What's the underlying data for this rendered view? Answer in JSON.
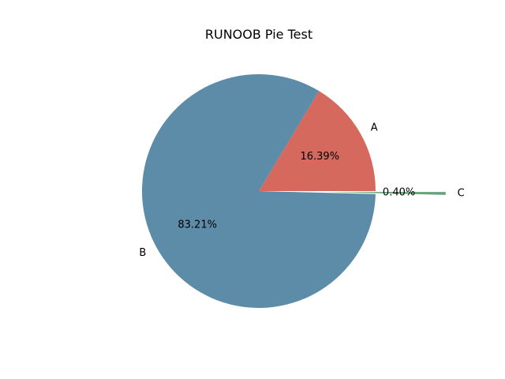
{
  "chart_data": {
    "type": "pie",
    "title": "RUNOOB Pie Test",
    "slices": [
      {
        "label": "A",
        "value": 16.39,
        "pct_label": "16.39%",
        "color": "#d5695d",
        "explode": 0
      },
      {
        "label": "B",
        "value": 83.21,
        "pct_label": "83.21%",
        "color": "#5d8ca8",
        "explode": 0
      },
      {
        "label": "C",
        "value": 0.4,
        "pct_label": "0.40%",
        "color": "#65a479",
        "explode": 0.6
      }
    ],
    "start_angle_deg": 0,
    "direction": "counterclockwise",
    "legend": "none"
  }
}
